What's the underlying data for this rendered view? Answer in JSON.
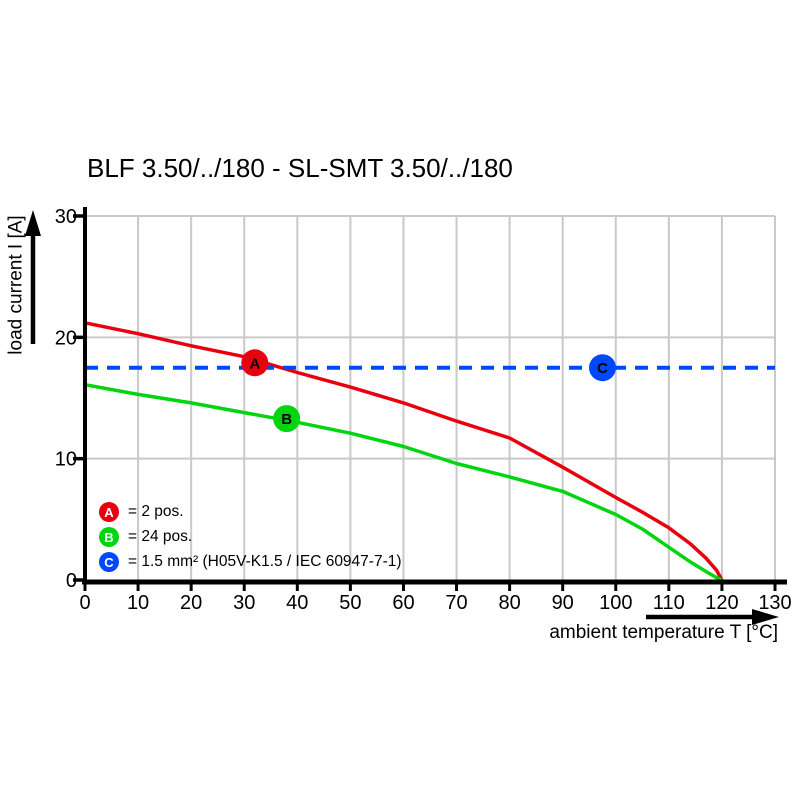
{
  "colors": {
    "grid": "#c9c9c9",
    "axis": "#000000",
    "series_a_red": "#e8000e",
    "series_b_green": "#00d50f",
    "series_c_blue": "#0048ff"
  },
  "chart_data": {
    "type": "line",
    "title": "BLF 3.50/../180 - SL-SMT 3.50/../180",
    "xlabel": "ambient temperature T [°C]",
    "ylabel": "load current I [A]",
    "xlim": [
      0,
      130
    ],
    "ylim": [
      0,
      30
    ],
    "x_ticks": [
      0,
      10,
      20,
      30,
      40,
      50,
      60,
      70,
      80,
      90,
      100,
      110,
      120,
      130
    ],
    "y_ticks": [
      0,
      10,
      20,
      30
    ],
    "grid": true,
    "legend_position": "lower-left",
    "series": [
      {
        "key": "A",
        "name": "2 pos.",
        "color": "#e8000e",
        "style": "solid",
        "x": [
          0,
          10,
          20,
          30,
          40,
          50,
          60,
          70,
          80,
          90,
          100,
          105,
          110,
          114,
          117,
          119,
          120
        ],
        "y": [
          21.2,
          20.3,
          19.3,
          18.4,
          17.1,
          15.9,
          14.6,
          13.1,
          11.7,
          9.3,
          6.8,
          5.6,
          4.3,
          3.0,
          1.8,
          0.8,
          0
        ]
      },
      {
        "key": "B",
        "name": "24 pos.",
        "color": "#00d50f",
        "style": "solid",
        "x": [
          0,
          10,
          20,
          30,
          40,
          50,
          60,
          70,
          80,
          90,
          100,
          105,
          110,
          114,
          117,
          119,
          120
        ],
        "y": [
          16.1,
          15.3,
          14.6,
          13.8,
          13.0,
          12.1,
          11.0,
          9.6,
          8.5,
          7.3,
          5.4,
          4.2,
          2.7,
          1.5,
          0.7,
          0.2,
          0
        ]
      },
      {
        "key": "C",
        "name": "1.5 mm² (H05V-K1.5 / IEC 60947-7-1)",
        "color": "#0048ff",
        "style": "dashed",
        "x": [
          0,
          130
        ],
        "y": [
          17.5,
          17.5
        ]
      }
    ],
    "point_markers": [
      {
        "key": "A",
        "x": 32,
        "y": 17.9,
        "color": "#e8000e"
      },
      {
        "key": "B",
        "x": 38,
        "y": 13.3,
        "color": "#00d50f"
      },
      {
        "key": "C",
        "x": 97.5,
        "y": 17.5,
        "color": "#0048ff"
      }
    ],
    "legend": [
      {
        "key": "A",
        "color": "#e8000e",
        "label": "= 2 pos."
      },
      {
        "key": "B",
        "color": "#00d50f",
        "label": "= 24 pos."
      },
      {
        "key": "C",
        "color": "#0048ff",
        "label": "= 1.5 mm² (H05V-K1.5 / IEC 60947-7-1)"
      }
    ]
  }
}
